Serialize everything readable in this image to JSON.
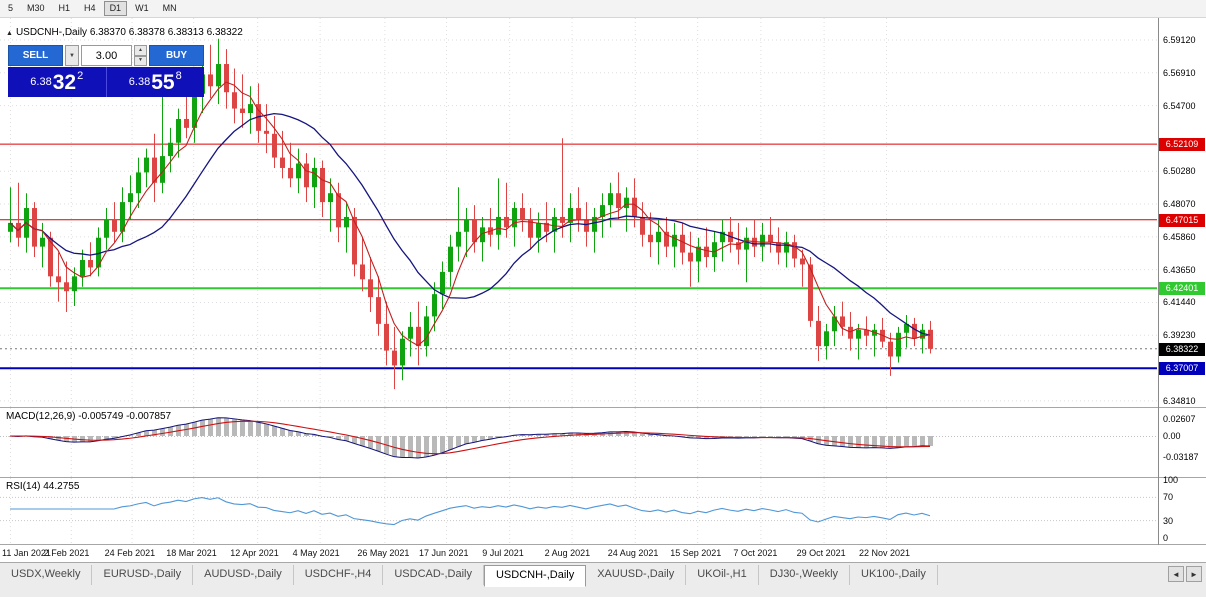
{
  "colors": {
    "up": "#0fa30f",
    "down": "#dd4444",
    "ma_fast": "#c02020",
    "ma_slow": "#151580",
    "macd_hist": "#b9b9b9",
    "macd_signal": "#cc1111",
    "macd_main": "#13137a",
    "rsi_line": "#4f97d7",
    "grid": "#dedede",
    "trade_panel_bg": "#1010b8",
    "trade_button_bg": "#2468d4",
    "bid_badge_bg": "#000000",
    "resistance_line": "#dd0000",
    "support_green_line": "#30c930",
    "support_blue_line": "#0000bb"
  },
  "toolbar": {
    "buttons": [
      "5",
      "M30",
      "H1",
      "H4",
      "D1",
      "W1",
      "MN"
    ],
    "active": "D1"
  },
  "chart": {
    "symbol_label": "USDCNH-,Daily",
    "quote": "6.38370 6.38378 6.38313 6.38322",
    "collapse_icon": "▲"
  },
  "trade_panel": {
    "sell_label": "SELL",
    "buy_label": "BUY",
    "volume": "3.00",
    "sell_price_prefix": "6.38",
    "sell_price_big": "32",
    "sell_price_sup": "2",
    "buy_price_prefix": "6.38",
    "buy_price_big": "55",
    "buy_price_sup": "8",
    "dropdown_icon": "▼",
    "spin_up_icon": "▲",
    "spin_down_icon": "▼"
  },
  "price_axis": {
    "ticks": [
      {
        "label": "6.59120",
        "v": 6.5912
      },
      {
        "label": "6.56910",
        "v": 6.5691
      },
      {
        "label": "6.54700",
        "v": 6.547
      },
      {
        "label": "6.50280",
        "v": 6.5028
      },
      {
        "label": "6.48070",
        "v": 6.4807
      },
      {
        "label": "6.45860",
        "v": 6.4586
      },
      {
        "label": "6.43650",
        "v": 6.4365
      },
      {
        "label": "6.41440",
        "v": 6.4144
      },
      {
        "label": "6.39230",
        "v": 6.3923
      },
      {
        "label": "6.34810",
        "v": 6.3481
      }
    ],
    "badges": [
      {
        "label": "6.52109",
        "v": 6.52109,
        "bg": "#dd0000"
      },
      {
        "label": "6.47015",
        "v": 6.47015,
        "bg": "#dd0000"
      },
      {
        "label": "6.42401",
        "v": 6.42401,
        "bg": "#30c930"
      },
      {
        "label": "6.38322",
        "v": 6.38322,
        "bg": "#000000"
      },
      {
        "label": "6.37007",
        "v": 6.37007,
        "bg": "#0000bb"
      }
    ]
  },
  "chart_data": {
    "type": "candlestick",
    "title": "USDCNH-,Daily",
    "y_domain": [
      6.344,
      6.606
    ],
    "hlines": [
      {
        "v": 6.52109,
        "color": "#dd0000",
        "width": 1
      },
      {
        "v": 6.47015,
        "color": "#dd0000",
        "width": 1
      },
      {
        "v": 6.42401,
        "color": "#30c930",
        "width": 2
      },
      {
        "v": 6.37007,
        "color": "#0000bb",
        "width": 2
      }
    ],
    "bid_line": {
      "v": 6.38322,
      "color": "#000000"
    },
    "x_ticks": [
      {
        "label": "11 Jan 2021",
        "i": 0
      },
      {
        "label": "2 Feb 2021",
        "i": 7.6
      },
      {
        "label": "24 Feb 2021",
        "i": 15.2
      },
      {
        "label": "18 Mar 2021",
        "i": 22.9
      },
      {
        "label": "12 Apr 2021",
        "i": 30.9
      },
      {
        "label": "4 May 2021",
        "i": 38.7
      },
      {
        "label": "26 May 2021",
        "i": 46.8
      },
      {
        "label": "17 Jun 2021",
        "i": 54.5
      },
      {
        "label": "9 Jul 2021",
        "i": 62.4
      },
      {
        "label": "2 Aug 2021",
        "i": 70.2
      },
      {
        "label": "24 Aug 2021",
        "i": 78.1
      },
      {
        "label": "15 Sep 2021",
        "i": 85.9
      },
      {
        "label": "7 Oct 2021",
        "i": 93.8
      },
      {
        "label": "29 Oct 2021",
        "i": 101.7
      },
      {
        "label": "22 Nov 2021",
        "i": 109.5
      }
    ],
    "ohlc": [
      [
        6.462,
        6.492,
        6.455,
        6.468
      ],
      [
        6.468,
        6.495,
        6.452,
        6.458
      ],
      [
        6.458,
        6.488,
        6.448,
        6.478
      ],
      [
        6.478,
        6.482,
        6.445,
        6.452
      ],
      [
        6.452,
        6.468,
        6.438,
        6.458
      ],
      [
        6.458,
        6.462,
        6.425,
        6.432
      ],
      [
        6.432,
        6.448,
        6.415,
        6.428
      ],
      [
        6.428,
        6.442,
        6.408,
        6.422
      ],
      [
        6.422,
        6.438,
        6.412,
        6.432
      ],
      [
        6.432,
        6.45,
        6.425,
        6.443
      ],
      [
        6.443,
        6.455,
        6.432,
        6.438
      ],
      [
        6.438,
        6.465,
        6.432,
        6.458
      ],
      [
        6.458,
        6.478,
        6.45,
        6.47
      ],
      [
        6.47,
        6.482,
        6.455,
        6.462
      ],
      [
        6.462,
        6.492,
        6.455,
        6.482
      ],
      [
        6.482,
        6.5,
        6.47,
        6.488
      ],
      [
        6.488,
        6.512,
        6.478,
        6.502
      ],
      [
        6.502,
        6.518,
        6.492,
        6.512
      ],
      [
        6.512,
        6.528,
        6.482,
        6.495
      ],
      [
        6.495,
        6.555,
        6.488,
        6.513
      ],
      [
        6.513,
        6.532,
        6.502,
        6.522
      ],
      [
        6.522,
        6.545,
        6.512,
        6.538
      ],
      [
        6.538,
        6.558,
        6.525,
        6.532
      ],
      [
        6.532,
        6.562,
        6.522,
        6.555
      ],
      [
        6.555,
        6.578,
        6.542,
        6.568
      ],
      [
        6.568,
        6.588,
        6.552,
        6.56
      ],
      [
        6.56,
        6.592,
        6.548,
        6.575
      ],
      [
        6.575,
        6.585,
        6.545,
        6.556
      ],
      [
        6.556,
        6.572,
        6.535,
        6.545
      ],
      [
        6.545,
        6.568,
        6.532,
        6.542
      ],
      [
        6.542,
        6.56,
        6.528,
        6.548
      ],
      [
        6.548,
        6.562,
        6.522,
        6.53
      ],
      [
        6.53,
        6.548,
        6.515,
        6.528
      ],
      [
        6.528,
        6.54,
        6.505,
        6.512
      ],
      [
        6.512,
        6.53,
        6.498,
        6.505
      ],
      [
        6.505,
        6.522,
        6.492,
        6.498
      ],
      [
        6.498,
        6.518,
        6.488,
        6.508
      ],
      [
        6.508,
        6.515,
        6.482,
        6.492
      ],
      [
        6.492,
        6.512,
        6.478,
        6.505
      ],
      [
        6.505,
        6.51,
        6.472,
        6.482
      ],
      [
        6.482,
        6.498,
        6.462,
        6.488
      ],
      [
        6.488,
        6.495,
        6.455,
        6.465
      ],
      [
        6.465,
        6.482,
        6.448,
        6.472
      ],
      [
        6.472,
        6.478,
        6.432,
        6.44
      ],
      [
        6.44,
        6.458,
        6.422,
        6.43
      ],
      [
        6.43,
        6.445,
        6.408,
        6.418
      ],
      [
        6.418,
        6.432,
        6.392,
        6.4
      ],
      [
        6.4,
        6.415,
        6.372,
        6.382
      ],
      [
        6.382,
        6.398,
        6.356,
        6.372
      ],
      [
        6.372,
        6.395,
        6.362,
        6.39
      ],
      [
        6.39,
        6.408,
        6.378,
        6.398
      ],
      [
        6.398,
        6.415,
        6.372,
        6.385
      ],
      [
        6.385,
        6.412,
        6.378,
        6.405
      ],
      [
        6.405,
        6.428,
        6.395,
        6.42
      ],
      [
        6.42,
        6.442,
        6.41,
        6.435
      ],
      [
        6.435,
        6.46,
        6.425,
        6.452
      ],
      [
        6.452,
        6.492,
        6.442,
        6.462
      ],
      [
        6.462,
        6.478,
        6.445,
        6.47
      ],
      [
        6.47,
        6.48,
        6.448,
        6.455
      ],
      [
        6.455,
        6.472,
        6.442,
        6.465
      ],
      [
        6.465,
        6.478,
        6.452,
        6.46
      ],
      [
        6.46,
        6.498,
        6.45,
        6.472
      ],
      [
        6.472,
        6.495,
        6.458,
        6.465
      ],
      [
        6.465,
        6.482,
        6.452,
        6.478
      ],
      [
        6.478,
        6.488,
        6.462,
        6.47
      ],
      [
        6.47,
        6.478,
        6.45,
        6.458
      ],
      [
        6.458,
        6.475,
        6.448,
        6.468
      ],
      [
        6.468,
        6.482,
        6.455,
        6.462
      ],
      [
        6.462,
        6.478,
        6.448,
        6.472
      ],
      [
        6.472,
        6.525,
        6.458,
        6.468
      ],
      [
        6.468,
        6.488,
        6.455,
        6.478
      ],
      [
        6.478,
        6.492,
        6.462,
        6.47
      ],
      [
        6.47,
        6.482,
        6.452,
        6.462
      ],
      [
        6.462,
        6.478,
        6.448,
        6.472
      ],
      [
        6.472,
        6.488,
        6.458,
        6.48
      ],
      [
        6.48,
        6.495,
        6.465,
        6.488
      ],
      [
        6.488,
        6.502,
        6.47,
        6.478
      ],
      [
        6.478,
        6.492,
        6.462,
        6.485
      ],
      [
        6.485,
        6.498,
        6.465,
        6.472
      ],
      [
        6.472,
        6.482,
        6.452,
        6.46
      ],
      [
        6.46,
        6.475,
        6.445,
        6.455
      ],
      [
        6.455,
        6.47,
        6.44,
        6.462
      ],
      [
        6.462,
        6.472,
        6.445,
        6.452
      ],
      [
        6.452,
        6.468,
        6.438,
        6.46
      ],
      [
        6.46,
        6.468,
        6.44,
        6.448
      ],
      [
        6.448,
        6.462,
        6.425,
        6.442
      ],
      [
        6.442,
        6.458,
        6.428,
        6.452
      ],
      [
        6.452,
        6.465,
        6.438,
        6.445
      ],
      [
        6.445,
        6.462,
        6.435,
        6.455
      ],
      [
        6.455,
        6.47,
        6.442,
        6.462
      ],
      [
        6.462,
        6.472,
        6.448,
        6.455
      ],
      [
        6.455,
        6.468,
        6.44,
        6.45
      ],
      [
        6.45,
        6.465,
        6.428,
        6.458
      ],
      [
        6.458,
        6.47,
        6.445,
        6.452
      ],
      [
        6.452,
        6.468,
        6.442,
        6.46
      ],
      [
        6.46,
        6.472,
        6.448,
        6.455
      ],
      [
        6.455,
        6.465,
        6.44,
        6.448
      ],
      [
        6.448,
        6.462,
        6.438,
        6.455
      ],
      [
        6.455,
        6.46,
        6.438,
        6.444
      ],
      [
        6.444,
        6.45,
        6.425,
        6.44
      ],
      [
        6.44,
        6.445,
        6.398,
        6.402
      ],
      [
        6.402,
        6.412,
        6.375,
        6.385
      ],
      [
        6.385,
        6.4,
        6.376,
        6.395
      ],
      [
        6.395,
        6.412,
        6.385,
        6.405
      ],
      [
        6.405,
        6.415,
        6.392,
        6.398
      ],
      [
        6.398,
        6.408,
        6.382,
        6.39
      ],
      [
        6.39,
        6.4,
        6.376,
        6.396
      ],
      [
        6.396,
        6.405,
        6.385,
        6.392
      ],
      [
        6.392,
        6.4,
        6.378,
        6.396
      ],
      [
        6.396,
        6.404,
        6.384,
        6.388
      ],
      [
        6.388,
        6.394,
        6.365,
        6.378
      ],
      [
        6.378,
        6.398,
        6.374,
        6.394
      ],
      [
        6.394,
        6.406,
        6.384,
        6.4
      ],
      [
        6.4,
        6.404,
        6.385,
        6.39
      ],
      [
        6.39,
        6.4,
        6.38,
        6.396
      ],
      [
        6.396,
        6.402,
        6.38,
        6.3832
      ]
    ]
  },
  "macd": {
    "legend": "MACD(12,26,9) -0.005749 -0.007857",
    "params": [
      12,
      26,
      9
    ],
    "ticks": [
      {
        "label": "0.02607",
        "v": 0.02607
      },
      {
        "label": "0.00",
        "v": 0
      },
      {
        "label": "-0.03187",
        "v": -0.03187
      }
    ]
  },
  "rsi": {
    "legend": "RSI(14) 44.2755",
    "period": 14,
    "last": 44.2755,
    "ticks": [
      {
        "label": "100",
        "v": 100
      },
      {
        "label": "70",
        "v": 70
      },
      {
        "label": "30",
        "v": 30
      },
      {
        "label": "0",
        "v": 0
      }
    ]
  },
  "tabs": {
    "items": [
      "USDX,Weekly",
      "EURUSD-,Daily",
      "AUDUSD-,Daily",
      "USDCHF-,H4",
      "USDCAD-,Daily",
      "USDCNH-,Daily",
      "XAUUSD-,Daily",
      "UKOil-,H1",
      "DJ30-,Weekly",
      "UK100-,Daily"
    ],
    "active": "USDCNH-,Daily",
    "left_arrow": "◄",
    "right_arrow": "►"
  }
}
